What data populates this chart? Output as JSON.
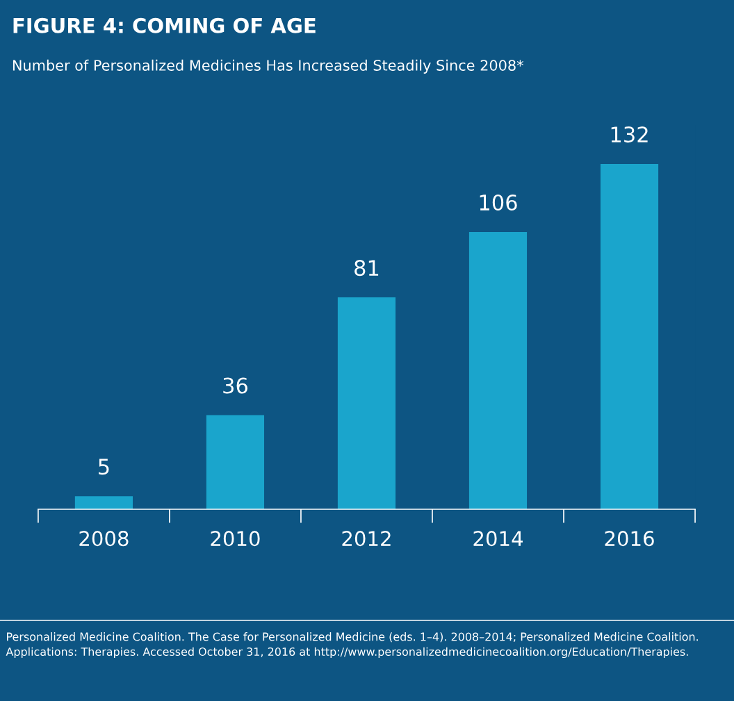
{
  "chart_data": {
    "type": "bar",
    "title": "FIGURE 4: COMING OF AGE",
    "subtitle": "Number of Personalized Medicines Has Increased Steadily Since 2008*",
    "categories": [
      "2008",
      "2010",
      "2012",
      "2014",
      "2016"
    ],
    "values": [
      5,
      36,
      81,
      106,
      132
    ],
    "color": "#1aa5cc",
    "data_labels": true,
    "grid": false,
    "legend": false,
    "annotations": [
      "Personalized Medicine Coalition. The Case for Personalized Medicine (eds. 1–4). 2008–2014; Personalized Medicine Coalition. Applications: Therapies. Accessed October 31, 2016 at http://www.personalizedmedicinecoalition.org/Education/Therapies."
    ]
  }
}
